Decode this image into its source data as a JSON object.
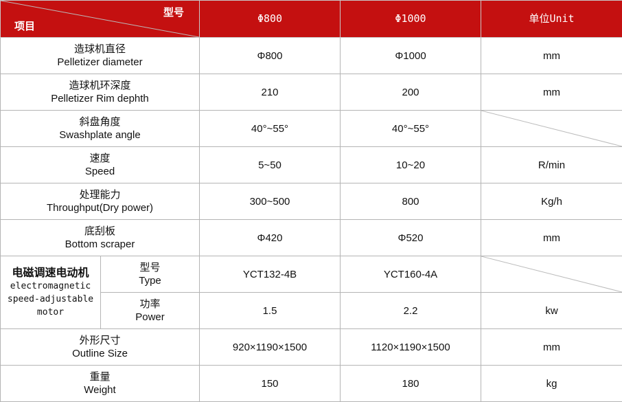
{
  "header": {
    "item_label": "项目",
    "model_label": "型号",
    "col1": "Φ800",
    "col2": "Φ1000",
    "unit": "单位Unit",
    "header_color": "#c41010"
  },
  "rows": [
    {
      "zh": "造球机直径",
      "en": "Pelletizer diameter",
      "v1": "Φ800",
      "v2": "Φ1000",
      "unit": "mm"
    },
    {
      "zh": "造球机环深度",
      "en": "Pelletizer Rim dephth",
      "v1": "210",
      "v2": "200",
      "unit": "mm"
    },
    {
      "zh": "斜盘角度",
      "en": "Swashplate angle",
      "v1": "40°~55°",
      "v2": "40°~55°",
      "unit": ""
    },
    {
      "zh": "速度",
      "en": "Speed",
      "v1": "5~50",
      "v2": "10~20",
      "unit": "R/min"
    },
    {
      "zh": "处理能力",
      "en": "Throughput(Dry power)",
      "v1": "300~500",
      "v2": "800",
      "unit": "Kg/h"
    },
    {
      "zh": "底刮板",
      "en": "Bottom scraper",
      "v1": "Φ420",
      "v2": "Φ520",
      "unit": "mm"
    }
  ],
  "motor": {
    "zh": "电磁调速电动机",
    "en1": "electromagnetic",
    "en2": "speed-adjustable",
    "en3": "motor",
    "type": {
      "zh": "型号",
      "en": "Type",
      "v1": "YCT132-4B",
      "v2": "YCT160-4A",
      "unit": ""
    },
    "power": {
      "zh": "功率",
      "en": "Power",
      "v1": "1.5",
      "v2": "2.2",
      "unit": "kw"
    }
  },
  "rows2": [
    {
      "zh": "外形尺寸",
      "en": "Outline Size",
      "v1": "920×1190×1500",
      "v2": "1120×1190×1500",
      "unit": "mm"
    },
    {
      "zh": "重量",
      "en": "Weight",
      "v1": "150",
      "v2": "180",
      "unit": "kg"
    }
  ]
}
